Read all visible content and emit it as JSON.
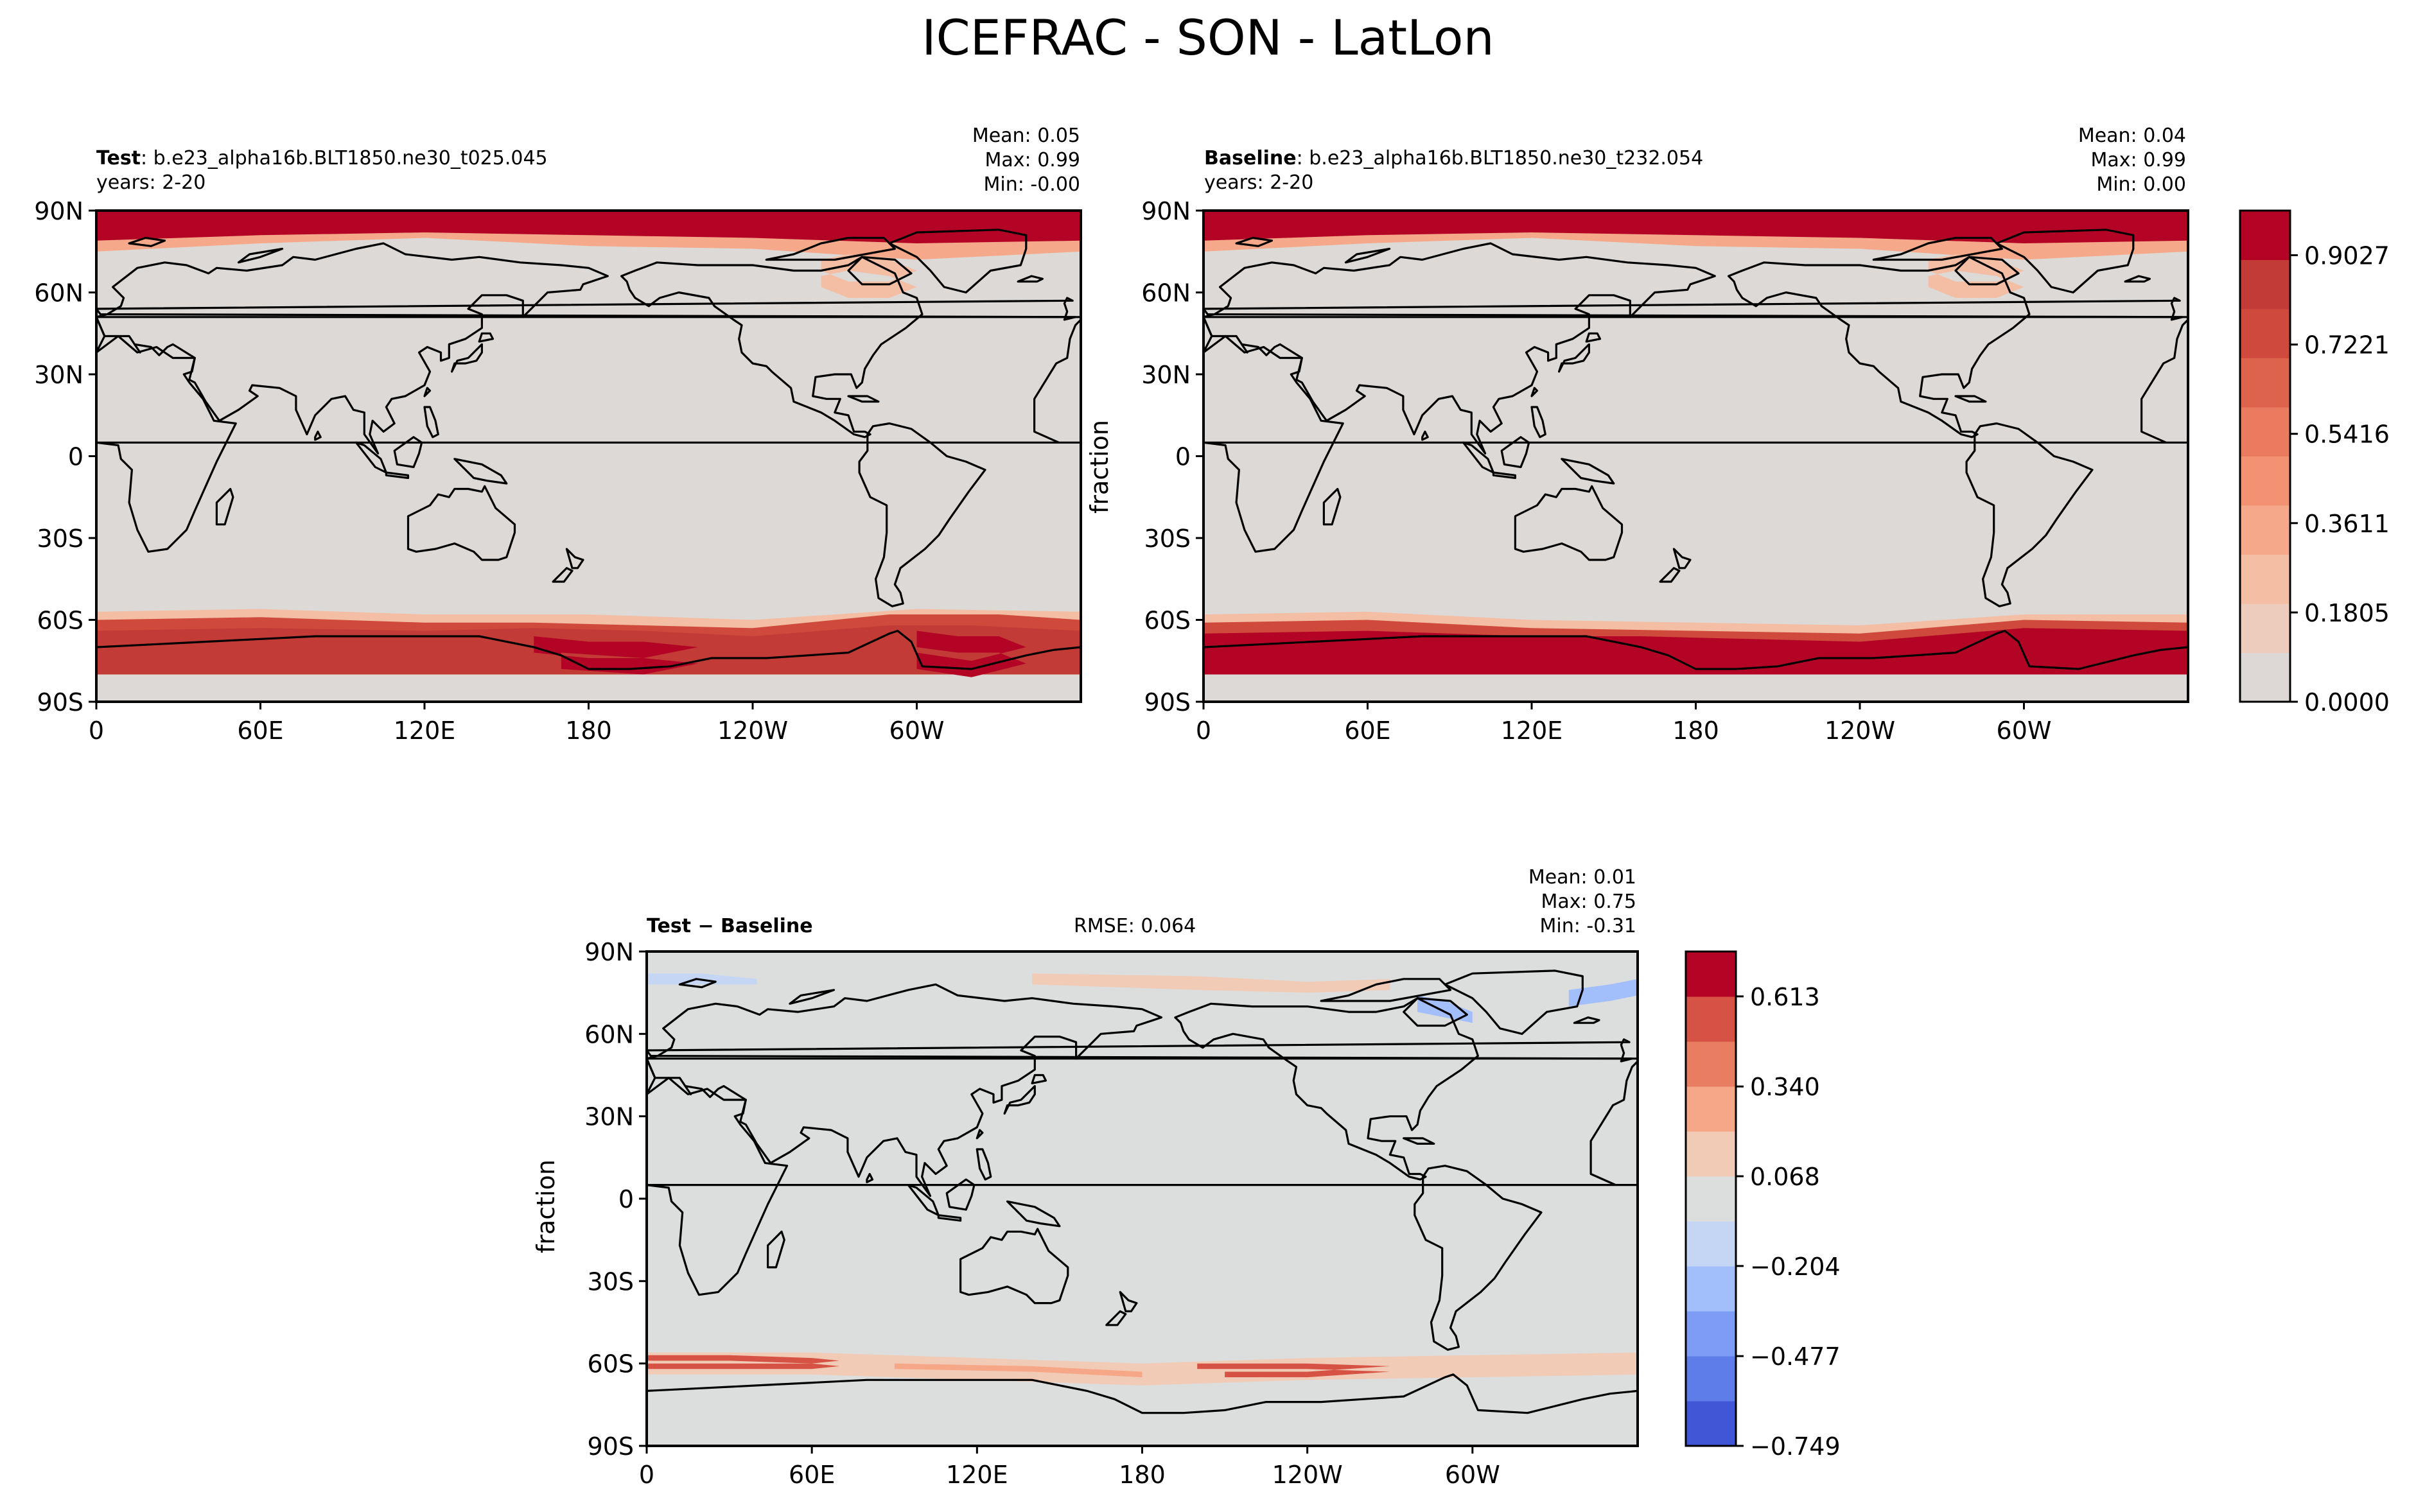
{
  "title": "ICEFRAC - SON - LatLon",
  "chart_data": [
    {
      "type": "heatmap",
      "name": "test",
      "label_bold": "Test",
      "label_rest": ": b.e23_alpha16b.BLT1850.ne30_t025.045",
      "years": "years: 2-20",
      "stats": {
        "mean": "Mean:  0.05",
        "max": "Max:  0.99",
        "min": "Min: -0.00"
      },
      "xticks": [
        "0",
        "60E",
        "120E",
        "180",
        "120W",
        "60W"
      ],
      "yticks": [
        "90N",
        "60N",
        "30N",
        "0",
        "30S",
        "60S",
        "90S"
      ],
      "ylabel": "",
      "field": "sea ice fraction; high (~0.95) north of ~80N and in the Southern Ocean 58S-75S, zero elsewhere"
    },
    {
      "type": "heatmap",
      "name": "baseline",
      "label_bold": "Baseline",
      "label_rest": ": b.e23_alpha16b.BLT1850.ne30_t232.054",
      "years": "years: 2-20",
      "stats": {
        "mean": "Mean:  0.04",
        "max": "Max:  0.99",
        "min": "Min:  0.00"
      },
      "xticks": [
        "0",
        "60E",
        "120E",
        "180",
        "120W",
        "60W"
      ],
      "yticks": [
        "90N",
        "60N",
        "30N",
        "0",
        "30S",
        "60S",
        "90S"
      ],
      "ylabel": "fraction",
      "colorbar": {
        "ticks": [
          "0.9027",
          "0.7221",
          "0.5416",
          "0.3611",
          "0.1805",
          "0.0000"
        ],
        "range": [
          0.0,
          0.9929
        ]
      }
    },
    {
      "type": "heatmap",
      "name": "difference",
      "label_bold": "Test − Baseline",
      "rmse": "RMSE: 0.064",
      "stats": {
        "mean": "Mean:  0.01",
        "max": "Max:  0.75",
        "min": "Min: -0.31"
      },
      "xticks": [
        "0",
        "60E",
        "120E",
        "180",
        "120W",
        "60W"
      ],
      "yticks": [
        "90N",
        "60N",
        "30N",
        "0",
        "30S",
        "60S",
        "90S"
      ],
      "ylabel": "fraction",
      "colorbar": {
        "ticks": [
          "0.613",
          "0.340",
          "0.068",
          "−0.204",
          "−0.477",
          "−0.749"
        ],
        "range": [
          -0.749,
          0.749
        ]
      }
    }
  ],
  "colors": {
    "seq": [
      "#ddd8d5",
      "#eeccbd",
      "#f4bea4",
      "#f5a98a",
      "#f29272",
      "#ea7b5e",
      "#dd634c",
      "#cf4a3c",
      "#c33b36",
      "#b40426"
    ],
    "div": [
      "#4056d6",
      "#5e7de8",
      "#7d9cf6",
      "#a2bffc",
      "#c5d6f5",
      "#dcdddd",
      "#f2cbb7",
      "#f6a787",
      "#e87d61",
      "#d65244",
      "#b40426"
    ],
    "ocean": "#dcd9d6",
    "ocean_diff": "#dcdddd"
  }
}
